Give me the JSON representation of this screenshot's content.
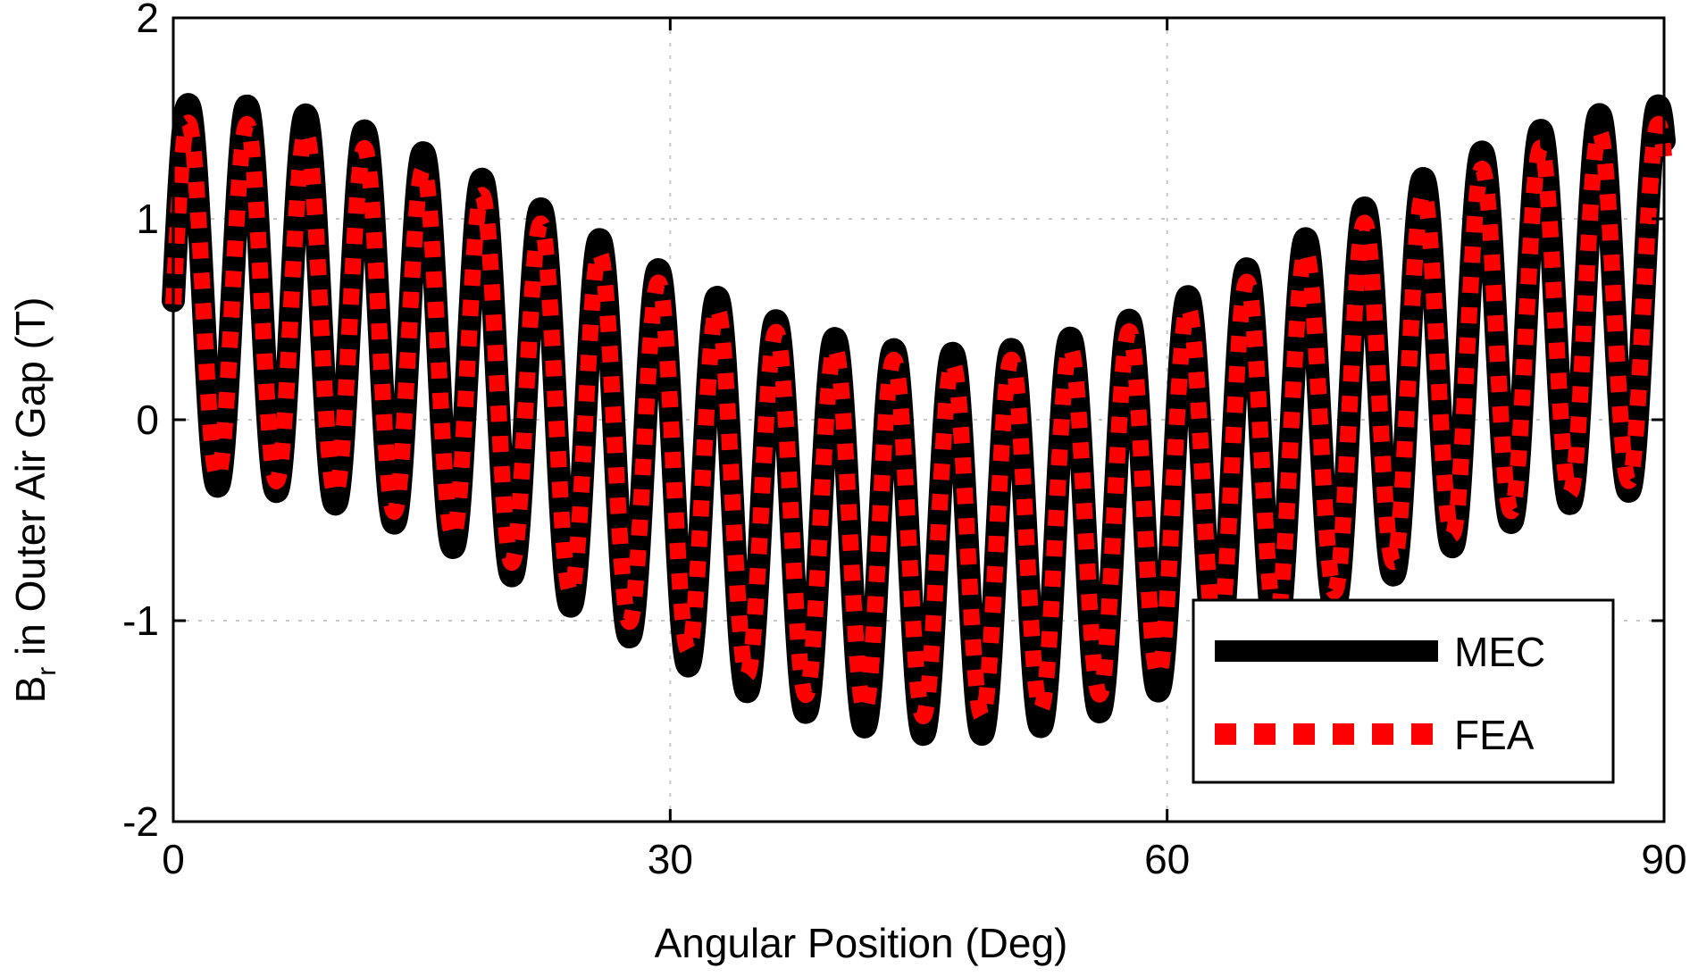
{
  "chart_data": {
    "type": "line",
    "title": "",
    "xlabel": "Angular Position (Deg)",
    "ylabel_main": "B",
    "ylabel_sub": "r",
    "ylabel_rest": " in Outer Air Gap (T)",
    "xlim": [
      0,
      90
    ],
    "ylim": [
      -2,
      2
    ],
    "xticks": [
      0,
      30,
      60,
      90
    ],
    "xtick_labels": [
      "0",
      "30",
      "60",
      "90"
    ],
    "yticks": [
      -2,
      -1,
      0,
      1,
      2
    ],
    "ytick_labels": [
      "-2",
      "-1",
      "0",
      "1",
      "2"
    ],
    "grid": true,
    "legend_position": "bottom-right",
    "series": [
      {
        "name": "MEC",
        "color": "#000000",
        "style": "solid",
        "model": {
          "fundamental_amplitude": 0.62,
          "fundamental_period_deg": 90,
          "fundamental_phase_deg": 0.7,
          "slot_ripple_amplitude": 0.95,
          "slot_ripple_period_deg": 3.55,
          "slot_ripple_phase_deg": 0.9,
          "offset": 0.0
        }
      },
      {
        "name": "FEA",
        "color": "#ff0000",
        "style": "dotted",
        "model": {
          "fundamental_amplitude": 0.6,
          "fundamental_period_deg": 90,
          "fundamental_phase_deg": 0.7,
          "slot_ripple_amplitude": 0.88,
          "slot_ripple_period_deg": 3.55,
          "slot_ripple_phase_deg": 0.9,
          "offset": 0.0
        }
      }
    ]
  }
}
